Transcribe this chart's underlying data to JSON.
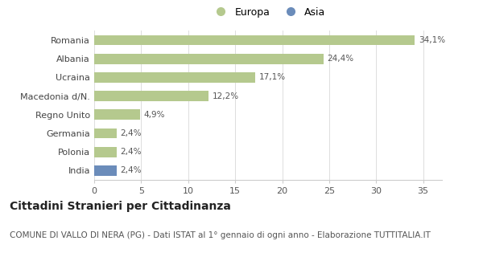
{
  "categories": [
    "India",
    "Polonia",
    "Germania",
    "Regno Unito",
    "Macedonia d/N.",
    "Ucraina",
    "Albania",
    "Romania"
  ],
  "values": [
    2.4,
    2.4,
    2.4,
    4.9,
    12.2,
    17.1,
    24.4,
    34.1
  ],
  "labels": [
    "2,4%",
    "2,4%",
    "2,4%",
    "4,9%",
    "12,2%",
    "17,1%",
    "24,4%",
    "34,1%"
  ],
  "colors": [
    "#6b8cba",
    "#b5c98e",
    "#b5c98e",
    "#b5c98e",
    "#b5c98e",
    "#b5c98e",
    "#b5c98e",
    "#b5c98e"
  ],
  "legend_europa_color": "#b5c98e",
  "legend_asia_color": "#6b8cba",
  "xlim": [
    0,
    37
  ],
  "xticks": [
    0,
    5,
    10,
    15,
    20,
    25,
    30,
    35
  ],
  "title": "Cittadini Stranieri per Cittadinanza",
  "subtitle": "COMUNE DI VALLO DI NERA (PG) - Dati ISTAT al 1° gennaio di ogni anno - Elaborazione TUTTITALIA.IT",
  "title_fontsize": 10,
  "subtitle_fontsize": 7.5,
  "label_fontsize": 7.5,
  "tick_fontsize": 8,
  "ytick_fontsize": 8,
  "background_color": "#ffffff",
  "bar_height": 0.55
}
